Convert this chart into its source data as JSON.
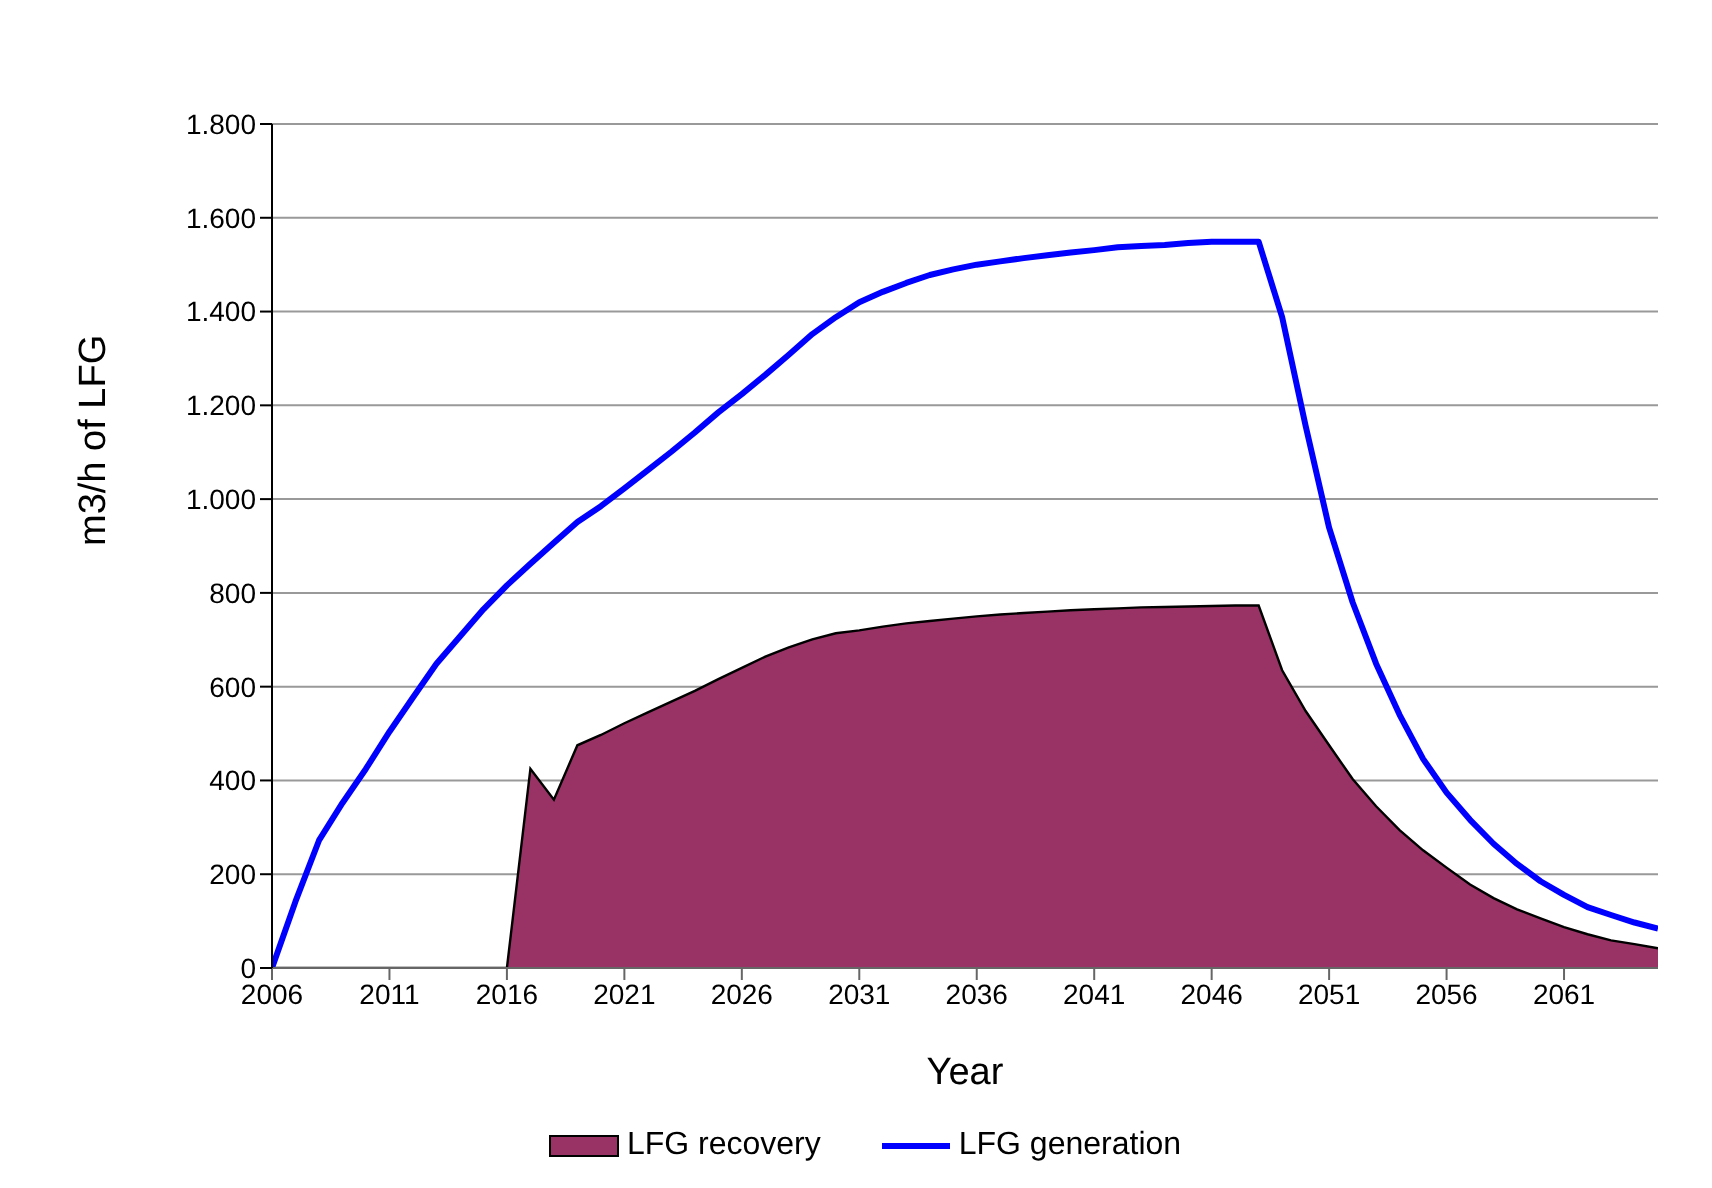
{
  "chart_data": {
    "type": "area",
    "xlabel": "Year",
    "ylabel": "m3/h of LFG",
    "x": [
      2006,
      2007,
      2008,
      2009,
      2010,
      2011,
      2012,
      2013,
      2014,
      2015,
      2016,
      2017,
      2018,
      2019,
      2020,
      2021,
      2022,
      2023,
      2024,
      2025,
      2026,
      2027,
      2028,
      2029,
      2030,
      2031,
      2032,
      2033,
      2034,
      2035,
      2036,
      2037,
      2038,
      2039,
      2040,
      2041,
      2042,
      2043,
      2044,
      2045,
      2046,
      2047,
      2048,
      2049,
      2050,
      2051,
      2052,
      2053,
      2054,
      2055,
      2056,
      2057,
      2058,
      2059,
      2060,
      2061,
      2062,
      2063,
      2064,
      2065
    ],
    "series": [
      {
        "name": "LFG recovery",
        "color": "#993366",
        "values": [
          0,
          0,
          0,
          0,
          0,
          0,
          0,
          0,
          0,
          0,
          0,
          425,
          359,
          475,
          497,
          522,
          545,
          568,
          591,
          616,
          640,
          664,
          684,
          701,
          714,
          720,
          728,
          735,
          740,
          745,
          750,
          754,
          757,
          760,
          763,
          765,
          767,
          769,
          770,
          771,
          772,
          773,
          773,
          635,
          548,
          475,
          403,
          345,
          294,
          251,
          214,
          178,
          149,
          125,
          106,
          87,
          72,
          59,
          51,
          42
        ]
      },
      {
        "name": "LFG generation",
        "type": "line",
        "color": "#0000ff",
        "values": [
          0,
          142,
          272,
          352,
          425,
          504,
          577,
          649,
          707,
          765,
          816,
          862,
          907,
          951,
          985,
          1023,
          1062,
          1101,
          1142,
          1185,
          1224,
          1265,
          1308,
          1352,
          1388,
          1420,
          1442,
          1461,
          1478,
          1490,
          1500,
          1507,
          1514,
          1520,
          1526,
          1531,
          1537,
          1540,
          1542,
          1546,
          1549,
          1549,
          1549,
          1388,
          1156,
          939,
          780,
          649,
          540,
          446,
          374,
          316,
          265,
          222,
          185,
          156,
          130,
          113,
          97,
          84
        ]
      }
    ],
    "xlim": [
      2006,
      2065
    ],
    "xticks": [
      2006,
      2011,
      2016,
      2021,
      2026,
      2031,
      2036,
      2041,
      2046,
      2051,
      2056,
      2061
    ],
    "ylim": [
      0,
      1800
    ],
    "yticks": [
      0,
      {
        "value": 200,
        "label": "200"
      },
      {
        "value": 400,
        "label": "400"
      },
      {
        "value": 600,
        "label": "600"
      },
      {
        "value": 800,
        "label": "800"
      },
      {
        "value": 1000,
        "label": "1.000"
      },
      {
        "value": 1200,
        "label": "1.200"
      },
      {
        "value": 1400,
        "label": "1.400"
      },
      {
        "value": 1600,
        "label": "1.600"
      },
      {
        "value": 1800,
        "label": "1.800"
      }
    ],
    "grid": "y",
    "legend": "bottom"
  }
}
